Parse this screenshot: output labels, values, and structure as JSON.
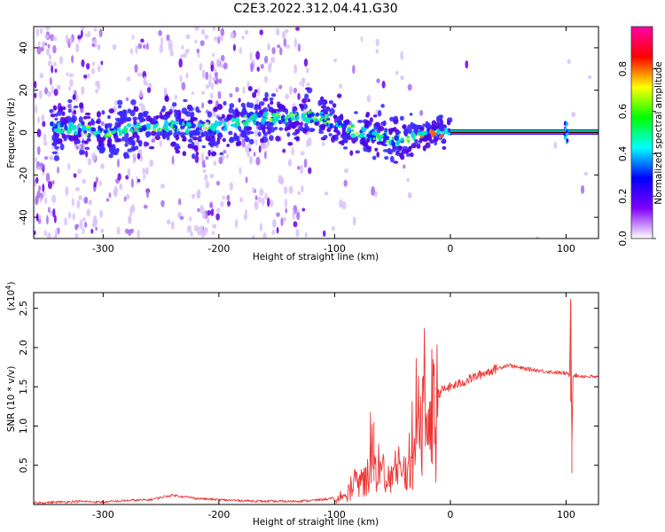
{
  "title": "C2E3.2022.312.04.41.G30",
  "chart_data": [
    {
      "type": "heatmap",
      "xlabel": "Height of straight line (km)",
      "ylabel": "Frequency (Hz)",
      "xlim": [
        -360,
        128
      ],
      "ylim": [
        -50,
        50
      ],
      "x_ticks": [
        -300,
        -200,
        -100,
        0,
        100
      ],
      "y_ticks": [
        -40,
        -20,
        0,
        20,
        40
      ],
      "colorbar": {
        "label": "Normalized spectral amplitude",
        "range": [
          0,
          1
        ],
        "ticks": [
          "0.0",
          "0.2",
          "0.4",
          "0.6",
          "0.8"
        ],
        "colors": [
          "#ffffff",
          "#7f00ff",
          "#0000ff",
          "#00ffff",
          "#00ff00",
          "#ffff00",
          "#ff0000",
          "#ff00aa"
        ]
      },
      "ridge": [
        {
          "x": -330,
          "f": 2
        },
        {
          "x": -300,
          "f": 0
        },
        {
          "x": -270,
          "f": 2
        },
        {
          "x": -240,
          "f": 3
        },
        {
          "x": -200,
          "f": 2
        },
        {
          "x": -170,
          "f": 7
        },
        {
          "x": -140,
          "f": 7
        },
        {
          "x": -120,
          "f": 8
        },
        {
          "x": -100,
          "f": 5
        },
        {
          "x": -80,
          "f": 0
        },
        {
          "x": -60,
          "f": -2
        },
        {
          "x": -40,
          "f": -4
        },
        {
          "x": -20,
          "f": 0
        },
        {
          "x": 0,
          "f": 0
        },
        {
          "x": 128,
          "f": 0
        }
      ],
      "tone_line_from_x": 0,
      "feature_at_x": 100
    },
    {
      "type": "line",
      "xlabel": "Height of straight line (km)",
      "ylabel": "SNR (10 * v/v)",
      "y_multiplier": "(x10",
      "y_multiplier_exp": "4",
      "y_multiplier_close": ")",
      "xlim": [
        -360,
        128
      ],
      "ylim": [
        0,
        2.7
      ],
      "x_ticks": [
        -300,
        -200,
        -100,
        0,
        100
      ],
      "y_ticks": [
        "0.5",
        "1.0",
        "1.5",
        "2.0",
        "2.5"
      ],
      "series": [
        {
          "color": "#ee3333",
          "x": [
            -360,
            -320,
            -300,
            -280,
            -260,
            -240,
            -220,
            -200,
            -180,
            -160,
            -140,
            -120,
            -100,
            -90,
            -80,
            -70,
            -68,
            -66,
            -60,
            -50,
            -40,
            -32,
            -28,
            -24,
            -20,
            -16,
            -15,
            -12,
            -8,
            0,
            10,
            20,
            30,
            40,
            50,
            60,
            80,
            100,
            103,
            104,
            105,
            106,
            110,
            120,
            128
          ],
          "y": [
            0.02,
            0.04,
            0.03,
            0.05,
            0.06,
            0.12,
            0.08,
            0.06,
            0.05,
            0.04,
            0.04,
            0.05,
            0.08,
            0.15,
            0.35,
            0.55,
            1.05,
            0.6,
            0.45,
            0.45,
            0.5,
            0.9,
            1.4,
            1.6,
            1.45,
            1.93,
            1.2,
            1.35,
            1.45,
            1.5,
            1.55,
            1.62,
            1.68,
            1.73,
            1.78,
            1.74,
            1.7,
            1.67,
            1.65,
            2.62,
            0.8,
            1.65,
            1.64,
            1.63,
            1.62
          ]
        }
      ]
    }
  ]
}
